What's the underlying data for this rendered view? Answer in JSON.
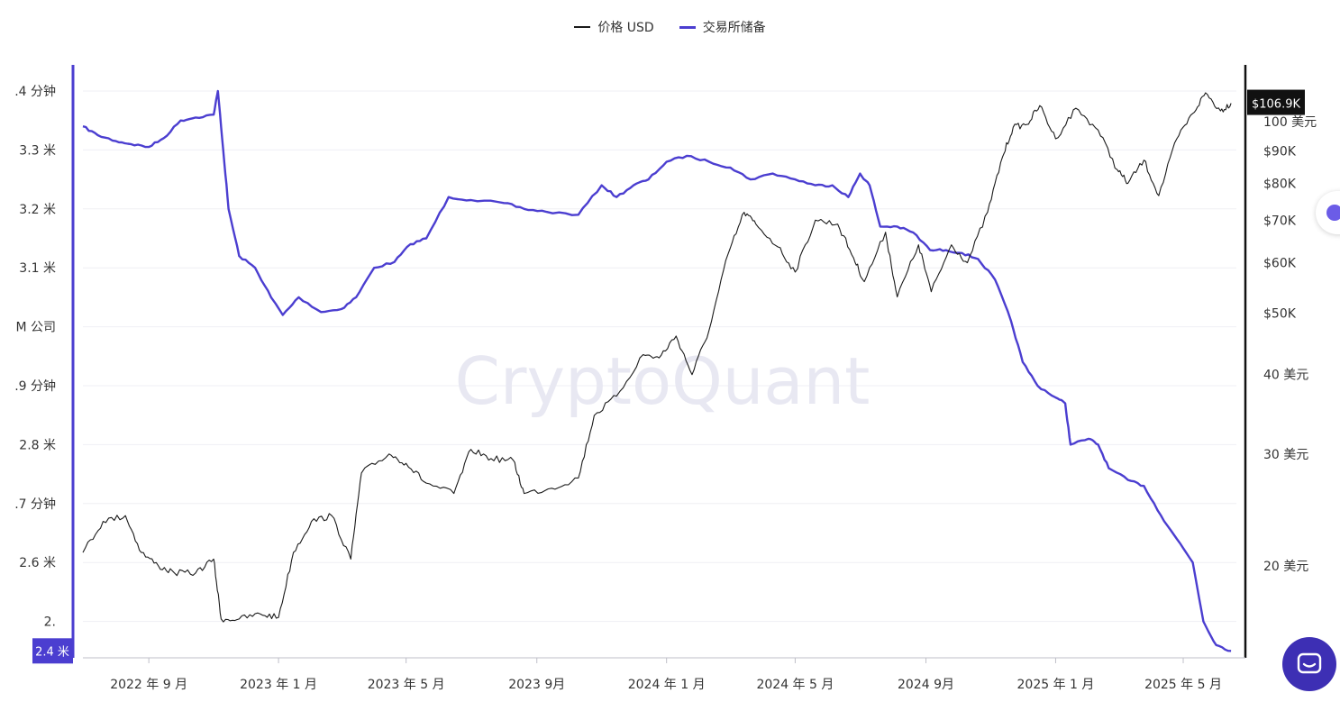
{
  "legend": {
    "price_label": "价格 USD",
    "reserve_label": "交易所储备"
  },
  "watermark": "CryptoQuant",
  "colors": {
    "price": "#1a1a1a",
    "reserve": "#4b3ed0",
    "grid": "#efeff4",
    "badge_price": "#111111",
    "badge_reserve": "#4b3ed0",
    "chat": "#3d2fb4"
  },
  "badges": {
    "reserve_current": "2.4 米",
    "price_current": "$106.9K"
  },
  "chart_data": {
    "type": "line",
    "x_ticks": [
      "2022 年 9 月",
      "2023 年 1 月",
      "2023 年 5 月",
      "2023 9月",
      "2024 年 1 月",
      "2024 年 5 月",
      "2024 9月",
      "2025 年 1 月",
      "2025 年 5 月"
    ],
    "left_axis": {
      "ticks": [
        {
          "value": 3.4,
          "label": ".4 分钟"
        },
        {
          "value": 3.3,
          "label": "3.3 米"
        },
        {
          "value": 3.2,
          "label": "3.2 米"
        },
        {
          "value": 3.1,
          "label": "3.1 米"
        },
        {
          "value": 3.0,
          "label": "M 公司"
        },
        {
          "value": 2.9,
          "label": ".9 分钟"
        },
        {
          "value": 2.8,
          "label": "2.8 米"
        },
        {
          "value": 2.7,
          "label": ".7 分钟"
        },
        {
          "value": 2.6,
          "label": "2.6 米"
        },
        {
          "value": 2.5,
          "label": "2."
        }
      ],
      "range": [
        2.44,
        3.44
      ]
    },
    "right_axis": {
      "scale": "log",
      "ticks": [
        {
          "value": 100000,
          "label": "100 美元"
        },
        {
          "value": 90000,
          "label": "$90K"
        },
        {
          "value": 80000,
          "label": "$80K"
        },
        {
          "value": 70000,
          "label": "$70K"
        },
        {
          "value": 60000,
          "label": "$60K"
        },
        {
          "value": 50000,
          "label": "$50K"
        },
        {
          "value": 40000,
          "label": "40 美元"
        },
        {
          "value": 30000,
          "label": "30 美元"
        },
        {
          "value": 20000,
          "label": "20 美元"
        }
      ]
    },
    "series": [
      {
        "name": "交易所储备",
        "axis": "left",
        "points": [
          [
            "2022-07-01",
            3.34
          ],
          [
            "2022-07-15",
            3.325
          ],
          [
            "2022-08-01",
            3.315
          ],
          [
            "2022-08-15",
            3.31
          ],
          [
            "2022-09-01",
            3.305
          ],
          [
            "2022-09-15",
            3.32
          ],
          [
            "2022-10-01",
            3.35
          ],
          [
            "2022-10-15",
            3.355
          ],
          [
            "2022-11-01",
            3.36
          ],
          [
            "2022-11-05",
            3.4
          ],
          [
            "2022-11-10",
            3.3
          ],
          [
            "2022-11-15",
            3.2
          ],
          [
            "2022-11-25",
            3.12
          ],
          [
            "2022-12-10",
            3.1
          ],
          [
            "2022-12-25",
            3.05
          ],
          [
            "2023-01-05",
            3.02
          ],
          [
            "2023-01-20",
            3.05
          ],
          [
            "2023-02-10",
            3.025
          ],
          [
            "2023-03-01",
            3.03
          ],
          [
            "2023-03-15",
            3.05
          ],
          [
            "2023-04-01",
            3.1
          ],
          [
            "2023-04-20",
            3.11
          ],
          [
            "2023-05-05",
            3.14
          ],
          [
            "2023-05-20",
            3.15
          ],
          [
            "2023-06-10",
            3.22
          ],
          [
            "2023-07-01",
            3.215
          ],
          [
            "2023-08-01",
            3.21
          ],
          [
            "2023-08-20",
            3.2
          ],
          [
            "2023-09-10",
            3.195
          ],
          [
            "2023-10-10",
            3.19
          ],
          [
            "2023-11-01",
            3.24
          ],
          [
            "2023-11-15",
            3.22
          ],
          [
            "2023-12-01",
            3.24
          ],
          [
            "2023-12-15",
            3.25
          ],
          [
            "2024-01-01",
            3.28
          ],
          [
            "2024-01-20",
            3.29
          ],
          [
            "2024-02-10",
            3.28
          ],
          [
            "2024-03-01",
            3.27
          ],
          [
            "2024-03-20",
            3.25
          ],
          [
            "2024-04-10",
            3.26
          ],
          [
            "2024-05-01",
            3.25
          ],
          [
            "2024-05-20",
            3.24
          ],
          [
            "2024-06-05",
            3.24
          ],
          [
            "2024-06-20",
            3.22
          ],
          [
            "2024-07-01",
            3.26
          ],
          [
            "2024-07-10",
            3.24
          ],
          [
            "2024-07-20",
            3.17
          ],
          [
            "2024-08-05",
            3.17
          ],
          [
            "2024-08-20",
            3.16
          ],
          [
            "2024-09-05",
            3.13
          ],
          [
            "2024-09-20",
            3.13
          ],
          [
            "2024-10-05",
            3.125
          ],
          [
            "2024-10-20",
            3.115
          ],
          [
            "2024-11-05",
            3.08
          ],
          [
            "2024-11-20",
            3.01
          ],
          [
            "2024-12-01",
            2.94
          ],
          [
            "2024-12-15",
            2.9
          ],
          [
            "2025-01-01",
            2.88
          ],
          [
            "2025-01-10",
            2.87
          ],
          [
            "2025-01-15",
            2.8
          ],
          [
            "2025-02-01",
            2.81
          ],
          [
            "2025-02-10",
            2.8
          ],
          [
            "2025-02-20",
            2.76
          ],
          [
            "2025-03-10",
            2.74
          ],
          [
            "2025-03-25",
            2.73
          ],
          [
            "2025-04-10",
            2.68
          ],
          [
            "2025-04-25",
            2.64
          ],
          [
            "2025-05-10",
            2.6
          ],
          [
            "2025-05-20",
            2.5
          ],
          [
            "2025-06-01",
            2.46
          ],
          [
            "2025-06-15",
            2.45
          ]
        ]
      },
      {
        "name": "价格 USD",
        "axis": "right",
        "points": [
          [
            "2022-07-01",
            21000
          ],
          [
            "2022-07-20",
            23500
          ],
          [
            "2022-08-10",
            24000
          ],
          [
            "2022-08-25",
            21000
          ],
          [
            "2022-09-10",
            20000
          ],
          [
            "2022-09-25",
            19500
          ],
          [
            "2022-10-15",
            19500
          ],
          [
            "2022-11-01",
            20500
          ],
          [
            "2022-11-08",
            16500
          ],
          [
            "2022-11-25",
            16500
          ],
          [
            "2022-12-15",
            16800
          ],
          [
            "2023-01-01",
            16600
          ],
          [
            "2023-01-15",
            21000
          ],
          [
            "2023-02-01",
            23500
          ],
          [
            "2023-02-20",
            24000
          ],
          [
            "2023-03-10",
            20500
          ],
          [
            "2023-03-20",
            28000
          ],
          [
            "2023-04-15",
            30000
          ],
          [
            "2023-05-01",
            29000
          ],
          [
            "2023-05-20",
            27000
          ],
          [
            "2023-06-15",
            26000
          ],
          [
            "2023-07-01",
            30500
          ],
          [
            "2023-07-20",
            29500
          ],
          [
            "2023-08-10",
            29300
          ],
          [
            "2023-08-20",
            26000
          ],
          [
            "2023-09-15",
            26500
          ],
          [
            "2023-10-10",
            27500
          ],
          [
            "2023-10-25",
            34500
          ],
          [
            "2023-11-15",
            37000
          ],
          [
            "2023-12-10",
            43000
          ],
          [
            "2023-12-25",
            42500
          ],
          [
            "2024-01-10",
            46000
          ],
          [
            "2024-01-25",
            40000
          ],
          [
            "2024-02-10",
            47000
          ],
          [
            "2024-02-28",
            62000
          ],
          [
            "2024-03-14",
            72000
          ],
          [
            "2024-03-25",
            69000
          ],
          [
            "2024-04-15",
            63500
          ],
          [
            "2024-05-01",
            58000
          ],
          [
            "2024-05-20",
            70000
          ],
          [
            "2024-06-10",
            69000
          ],
          [
            "2024-06-25",
            61000
          ],
          [
            "2024-07-05",
            56000
          ],
          [
            "2024-07-25",
            67000
          ],
          [
            "2024-08-05",
            53000
          ],
          [
            "2024-08-25",
            64000
          ],
          [
            "2024-09-06",
            54000
          ],
          [
            "2024-09-25",
            64000
          ],
          [
            "2024-10-10",
            60000
          ],
          [
            "2024-10-29",
            72000
          ],
          [
            "2024-11-12",
            88000
          ],
          [
            "2024-11-22",
            98000
          ],
          [
            "2024-12-05",
            99000
          ],
          [
            "2024-12-17",
            106000
          ],
          [
            "2025-01-01",
            94000
          ],
          [
            "2025-01-20",
            105000
          ],
          [
            "2025-02-10",
            97000
          ],
          [
            "2025-02-28",
            84000
          ],
          [
            "2025-03-10",
            80000
          ],
          [
            "2025-03-25",
            87000
          ],
          [
            "2025-04-08",
            76500
          ],
          [
            "2025-04-25",
            94000
          ],
          [
            "2025-05-10",
            103000
          ],
          [
            "2025-05-22",
            111000
          ],
          [
            "2025-06-05",
            104000
          ],
          [
            "2025-06-15",
            106900
          ]
        ]
      }
    ]
  }
}
